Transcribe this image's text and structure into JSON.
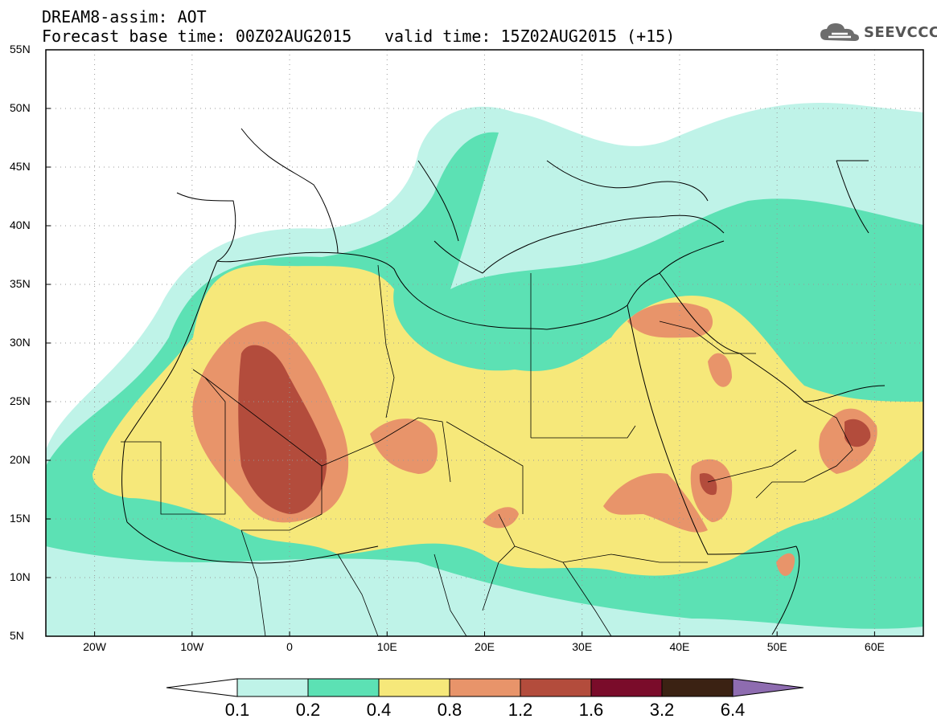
{
  "header": {
    "title_line1": "DREAM8-assim: AOT",
    "title_line2": "Forecast base time: 00Z02AUG2015",
    "valid_time": "valid time: 15Z02AUG2015 (+15)",
    "logo_text": "SEEVCCC",
    "logo_icon": "cloud-icon"
  },
  "map": {
    "lat_labels": [
      "55N",
      "50N",
      "45N",
      "40N",
      "35N",
      "30N",
      "25N",
      "20N",
      "15N",
      "10N",
      "5N"
    ],
    "lon_labels": [
      "20W",
      "10W",
      "0",
      "10E",
      "20E",
      "30E",
      "40E",
      "50E",
      "60E"
    ],
    "lat_range": [
      5,
      55
    ],
    "lon_range": [
      -25,
      65
    ],
    "grid": "dotted"
  },
  "colorbar": {
    "levels": [
      "0.1",
      "0.2",
      "0.4",
      "0.8",
      "1.2",
      "1.6",
      "3.2",
      "6.4"
    ],
    "colors": [
      "#ffffff",
      "#bff3e8",
      "#5ce1b4",
      "#f6e87a",
      "#e8946a",
      "#b34c3c",
      "#7a0c2a",
      "#3b2213",
      "#8e6cb0"
    ]
  }
}
